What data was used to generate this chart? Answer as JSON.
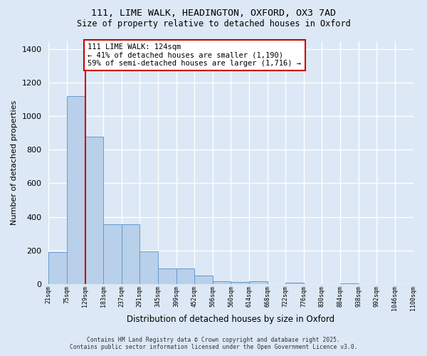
{
  "title_line1": "111, LIME WALK, HEADINGTON, OXFORD, OX3 7AD",
  "title_line2": "Size of property relative to detached houses in Oxford",
  "xlabel": "Distribution of detached houses by size in Oxford",
  "ylabel": "Number of detached properties",
  "bar_color": "#b8d0ea",
  "bar_edge_color": "#6699cc",
  "vline_color": "#cc0000",
  "vline_x": 2,
  "annotation_text": "111 LIME WALK: 124sqm\n← 41% of detached houses are smaller (1,190)\n59% of semi-detached houses are larger (1,716) →",
  "annotation_box_color": "#cc0000",
  "background_color": "#dce8f5",
  "grid_color": "#ffffff",
  "footer_line1": "Contains HM Land Registry data © Crown copyright and database right 2025.",
  "footer_line2": "Contains public sector information licensed under the Open Government Licence v3.0.",
  "bin_labels": [
    "21sqm",
    "75sqm",
    "129sqm",
    "183sqm",
    "237sqm",
    "291sqm",
    "345sqm",
    "399sqm",
    "452sqm",
    "506sqm",
    "560sqm",
    "614sqm",
    "668sqm",
    "722sqm",
    "776sqm",
    "830sqm",
    "884sqm",
    "938sqm",
    "992sqm",
    "1046sqm",
    "1100sqm"
  ],
  "counts": [
    190,
    1120,
    880,
    355,
    355,
    195,
    90,
    90,
    50,
    15,
    12,
    15,
    0,
    5,
    0,
    0,
    2,
    0,
    0,
    0
  ],
  "ylim": [
    0,
    1450
  ],
  "yticks": [
    0,
    200,
    400,
    600,
    800,
    1000,
    1200,
    1400
  ]
}
